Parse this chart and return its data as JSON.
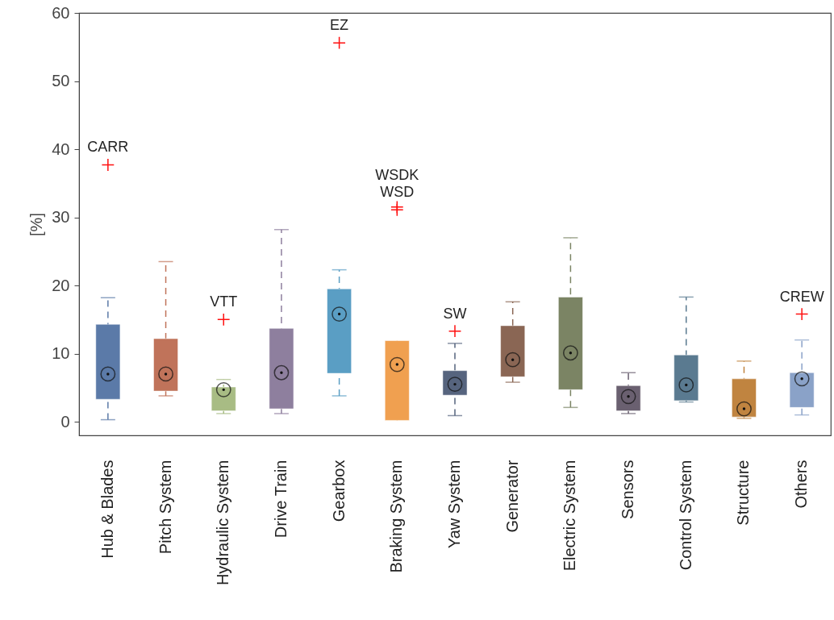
{
  "chart_data": {
    "type": "box",
    "ylabel": "[%]",
    "categories": [
      "Hub & Blades",
      "Pitch System",
      "Hydraulic System",
      "Drive Train",
      "Gearbox",
      "Braking System",
      "Yaw System",
      "Generator",
      "Electric System",
      "Sensors",
      "Control System",
      "Structure",
      "Others"
    ],
    "colors": [
      "#5b7aa8",
      "#c0735a",
      "#a8bc84",
      "#8e7f9e",
      "#5a9ec4",
      "#f0a050",
      "#56647e",
      "#8a6654",
      "#7b8464",
      "#6a6070",
      "#5a7a90",
      "#c08440",
      "#8aa2c8"
    ],
    "boxes": [
      {
        "low": 0.3,
        "q1": 3.3,
        "median": 7.0,
        "q3": 14.3,
        "high": 18.2,
        "outliers": [
          37.7
        ]
      },
      {
        "low": 3.8,
        "q1": 4.5,
        "median": 7.0,
        "q3": 12.2,
        "high": 23.5
      },
      {
        "low": 1.2,
        "q1": 1.6,
        "median": 4.7,
        "q3": 5.1,
        "high": 6.2,
        "outliers": [
          15.0
        ]
      },
      {
        "low": 1.2,
        "q1": 1.9,
        "median": 7.2,
        "q3": 13.7,
        "high": 28.2
      },
      {
        "low": 3.8,
        "q1": 7.1,
        "median": 15.8,
        "q3": 19.5,
        "high": 22.3,
        "outliers": [
          55.6
        ]
      },
      {
        "low": 0.2,
        "q1": 0.2,
        "median": 8.4,
        "q3": 11.9,
        "high": 11.9,
        "outliers": [
          31.5,
          31.1
        ]
      },
      {
        "low": 0.9,
        "q1": 3.9,
        "median": 5.5,
        "q3": 7.5,
        "high": 11.5,
        "outliers": [
          13.3
        ]
      },
      {
        "low": 5.8,
        "q1": 6.6,
        "median": 9.1,
        "q3": 14.1,
        "high": 17.6
      },
      {
        "low": 2.1,
        "q1": 4.7,
        "median": 10.1,
        "q3": 18.3,
        "high": 27.0
      },
      {
        "low": 1.2,
        "q1": 1.6,
        "median": 3.7,
        "q3": 5.3,
        "high": 7.2
      },
      {
        "low": 2.9,
        "q1": 3.1,
        "median": 5.4,
        "q3": 9.8,
        "high": 18.3
      },
      {
        "low": 0.5,
        "q1": 0.7,
        "median": 1.9,
        "q3": 6.3,
        "high": 8.9
      },
      {
        "low": 1.0,
        "q1": 2.1,
        "median": 6.3,
        "q3": 7.2,
        "high": 12.0,
        "outliers": [
          15.8
        ]
      }
    ],
    "annotations": [
      "CARR",
      "VTT",
      "EZ",
      "WSDK",
      "WSD",
      "SW",
      "CREW"
    ],
    "ylim": [
      -2,
      60
    ],
    "yticks": [
      0,
      10,
      20,
      30,
      40,
      50,
      60
    ],
    "grid": false,
    "line_style": "dashed"
  }
}
